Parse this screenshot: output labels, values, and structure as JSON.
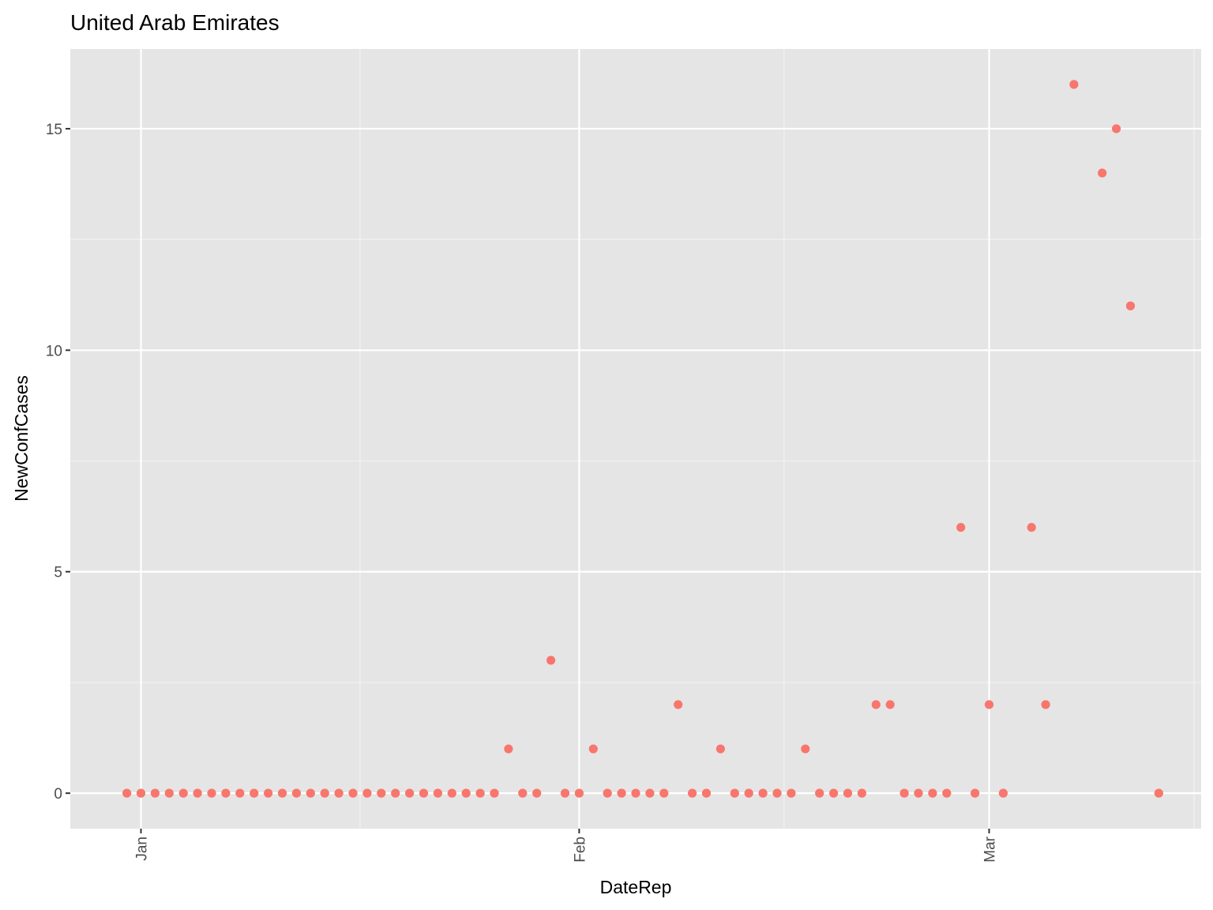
{
  "chart_data": {
    "type": "scatter",
    "title": "United Arab Emirates",
    "xlabel": "DateRep",
    "ylabel": "NewConfCases",
    "x_tick_labels": [
      "Jan",
      "Feb",
      "Mar"
    ],
    "x_ticks": [
      "2020-01-01",
      "2020-02-01",
      "2020-03-01"
    ],
    "y_ticks": [
      0,
      5,
      10,
      15
    ],
    "xlim": [
      "2019-12-27",
      "2020-03-16"
    ],
    "ylim": [
      -0.8,
      16.8
    ],
    "grid": true,
    "point_color": "#F8766D",
    "panel_background": "#E5E5E5",
    "series": [
      {
        "x": [
          "2019-12-31",
          "2020-01-01",
          "2020-01-02",
          "2020-01-03",
          "2020-01-04",
          "2020-01-05",
          "2020-01-06",
          "2020-01-07",
          "2020-01-08",
          "2020-01-09",
          "2020-01-10",
          "2020-01-11",
          "2020-01-12",
          "2020-01-13",
          "2020-01-14",
          "2020-01-15",
          "2020-01-16",
          "2020-01-17",
          "2020-01-18",
          "2020-01-19",
          "2020-01-20",
          "2020-01-21",
          "2020-01-22",
          "2020-01-23",
          "2020-01-24",
          "2020-01-25",
          "2020-01-26",
          "2020-01-27",
          "2020-01-28",
          "2020-01-29",
          "2020-01-30",
          "2020-01-31",
          "2020-02-01",
          "2020-02-02",
          "2020-02-03",
          "2020-02-04",
          "2020-02-05",
          "2020-02-06",
          "2020-02-07",
          "2020-02-08",
          "2020-02-09",
          "2020-02-10",
          "2020-02-11",
          "2020-02-12",
          "2020-02-13",
          "2020-02-14",
          "2020-02-15",
          "2020-02-16",
          "2020-02-17",
          "2020-02-18",
          "2020-02-19",
          "2020-02-20",
          "2020-02-21",
          "2020-02-22",
          "2020-02-23",
          "2020-02-24",
          "2020-02-25",
          "2020-02-26",
          "2020-02-27",
          "2020-02-28",
          "2020-02-29",
          "2020-03-01",
          "2020-03-02",
          "2020-03-04",
          "2020-03-05",
          "2020-03-07",
          "2020-03-09",
          "2020-03-10",
          "2020-03-11",
          "2020-03-13"
        ],
        "y": [
          0,
          0,
          0,
          0,
          0,
          0,
          0,
          0,
          0,
          0,
          0,
          0,
          0,
          0,
          0,
          0,
          0,
          0,
          0,
          0,
          0,
          0,
          0,
          0,
          0,
          0,
          0,
          1,
          0,
          0,
          3,
          0,
          0,
          1,
          0,
          0,
          0,
          0,
          0,
          2,
          0,
          0,
          1,
          0,
          0,
          0,
          0,
          0,
          1,
          0,
          0,
          0,
          0,
          2,
          2,
          0,
          0,
          0,
          0,
          6,
          0,
          2,
          0,
          6,
          2,
          16,
          14,
          15,
          11,
          0
        ]
      }
    ]
  }
}
